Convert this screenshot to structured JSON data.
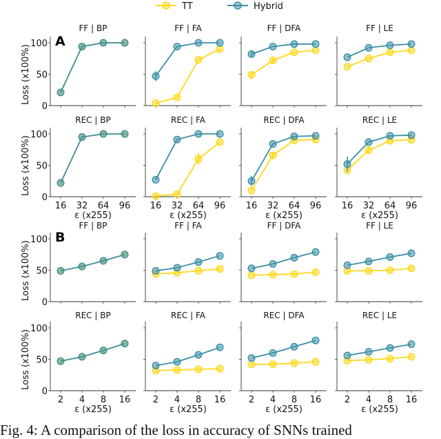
{
  "legend": {
    "placement": "top-center",
    "entries": [
      {
        "name": "TT",
        "color": "#FFD81A"
      },
      {
        "name": "Hybrid",
        "color": "#3A8FA6"
      }
    ]
  },
  "caption": "Fig. 4: A comparison of the loss in accuracy of SNNs trained",
  "chart_data": [
    {
      "panel": "A",
      "type": "line",
      "ylabel": "Loss (x100%)",
      "xlabel": "ε (x255)",
      "ylim": [
        0,
        110
      ],
      "yticks": [
        0,
        50,
        100
      ],
      "categories": [
        "16",
        "32",
        "64",
        "96"
      ],
      "subplots": [
        {
          "title": "FF | BP",
          "series": [
            {
              "name": "TT",
              "values": [
                21,
                94,
                100,
                100
              ]
            },
            {
              "name": "Hybrid",
              "values": [
                21,
                94,
                100,
                100
              ]
            }
          ]
        },
        {
          "title": "FF | FA",
          "series": [
            {
              "name": "TT",
              "values": [
                4,
                13,
                73,
                90
              ]
            },
            {
              "name": "Hybrid",
              "values": [
                47,
                94,
                100,
                100
              ],
              "err": [
                8,
                0,
                0,
                0
              ]
            }
          ]
        },
        {
          "title": "FF | DFA",
          "series": [
            {
              "name": "TT",
              "values": [
                49,
                72,
                85,
                88
              ],
              "err": [
                4,
                4,
                0,
                0
              ]
            },
            {
              "name": "Hybrid",
              "values": [
                82,
                94,
                98,
                98
              ],
              "err": [
                4,
                0,
                0,
                0
              ]
            }
          ]
        },
        {
          "title": "FF | LE",
          "series": [
            {
              "name": "TT",
              "values": [
                62,
                75,
                85,
                88
              ]
            },
            {
              "name": "Hybrid",
              "values": [
                77,
                92,
                96,
                98
              ]
            }
          ]
        },
        {
          "title": "REC | BP",
          "series": [
            {
              "name": "TT",
              "values": [
                22,
                95,
                100,
                100
              ]
            },
            {
              "name": "Hybrid",
              "values": [
                22,
                95,
                100,
                100
              ]
            }
          ]
        },
        {
          "title": "REC | FA",
          "series": [
            {
              "name": "TT",
              "values": [
                1,
                4,
                60,
                87
              ],
              "err": [
                0,
                0,
                10,
                0
              ]
            },
            {
              "name": "Hybrid",
              "values": [
                27,
                91,
                100,
                100
              ]
            }
          ]
        },
        {
          "title": "REC | DFA",
          "series": [
            {
              "name": "TT",
              "values": [
                10,
                66,
                90,
                91
              ],
              "err": [
                0,
                5,
                0,
                0
              ]
            },
            {
              "name": "Hybrid",
              "values": [
                25,
                84,
                96,
                97
              ],
              "err": [
                8,
                0,
                0,
                0
              ]
            }
          ]
        },
        {
          "title": "REC | LE",
          "series": [
            {
              "name": "TT",
              "values": [
                42,
                74,
                89,
                91
              ],
              "err": [
                5,
                5,
                0,
                0
              ]
            },
            {
              "name": "Hybrid",
              "values": [
                52,
                87,
                97,
                98
              ],
              "err": [
                12,
                0,
                0,
                0
              ]
            }
          ]
        }
      ]
    },
    {
      "panel": "B",
      "type": "line",
      "ylabel": "Loss (x100%)",
      "xlabel": "ε (x255)",
      "ylim": [
        0,
        110
      ],
      "yticks": [
        0,
        50,
        100
      ],
      "categories": [
        "2",
        "4",
        "8",
        "16"
      ],
      "subplots": [
        {
          "title": "FF | BP",
          "series": [
            {
              "name": "TT",
              "values": [
                49,
                56,
                65,
                75
              ]
            },
            {
              "name": "Hybrid",
              "values": [
                49,
                56,
                65,
                75
              ]
            }
          ]
        },
        {
          "title": "FF | FA",
          "series": [
            {
              "name": "TT",
              "values": [
                44,
                46,
                49,
                52
              ]
            },
            {
              "name": "Hybrid",
              "values": [
                49,
                54,
                63,
                73
              ]
            }
          ]
        },
        {
          "title": "FF | DFA",
          "series": [
            {
              "name": "TT",
              "values": [
                42,
                43,
                44,
                47
              ]
            },
            {
              "name": "Hybrid",
              "values": [
                53,
                60,
                70,
                79
              ]
            }
          ]
        },
        {
          "title": "FF | LE",
          "series": [
            {
              "name": "TT",
              "values": [
                49,
                49,
                50,
                53
              ]
            },
            {
              "name": "Hybrid",
              "values": [
                58,
                64,
                71,
                77
              ]
            }
          ]
        },
        {
          "title": "REC | BP",
          "series": [
            {
              "name": "TT",
              "values": [
                47,
                54,
                64,
                75
              ]
            },
            {
              "name": "Hybrid",
              "values": [
                47,
                54,
                64,
                75
              ]
            }
          ]
        },
        {
          "title": "REC | FA",
          "series": [
            {
              "name": "TT",
              "values": [
                32,
                33,
                34,
                35
              ]
            },
            {
              "name": "Hybrid",
              "values": [
                40,
                46,
                57,
                69
              ]
            }
          ]
        },
        {
          "title": "REC | DFA",
          "series": [
            {
              "name": "TT",
              "values": [
                42,
                42,
                44,
                46
              ]
            },
            {
              "name": "Hybrid",
              "values": [
                52,
                60,
                70,
                80
              ]
            }
          ]
        },
        {
          "title": "REC | LE",
          "series": [
            {
              "name": "TT",
              "values": [
                48,
                49,
                51,
                54
              ]
            },
            {
              "name": "Hybrid",
              "values": [
                56,
                62,
                68,
                74
              ]
            }
          ]
        }
      ]
    }
  ]
}
